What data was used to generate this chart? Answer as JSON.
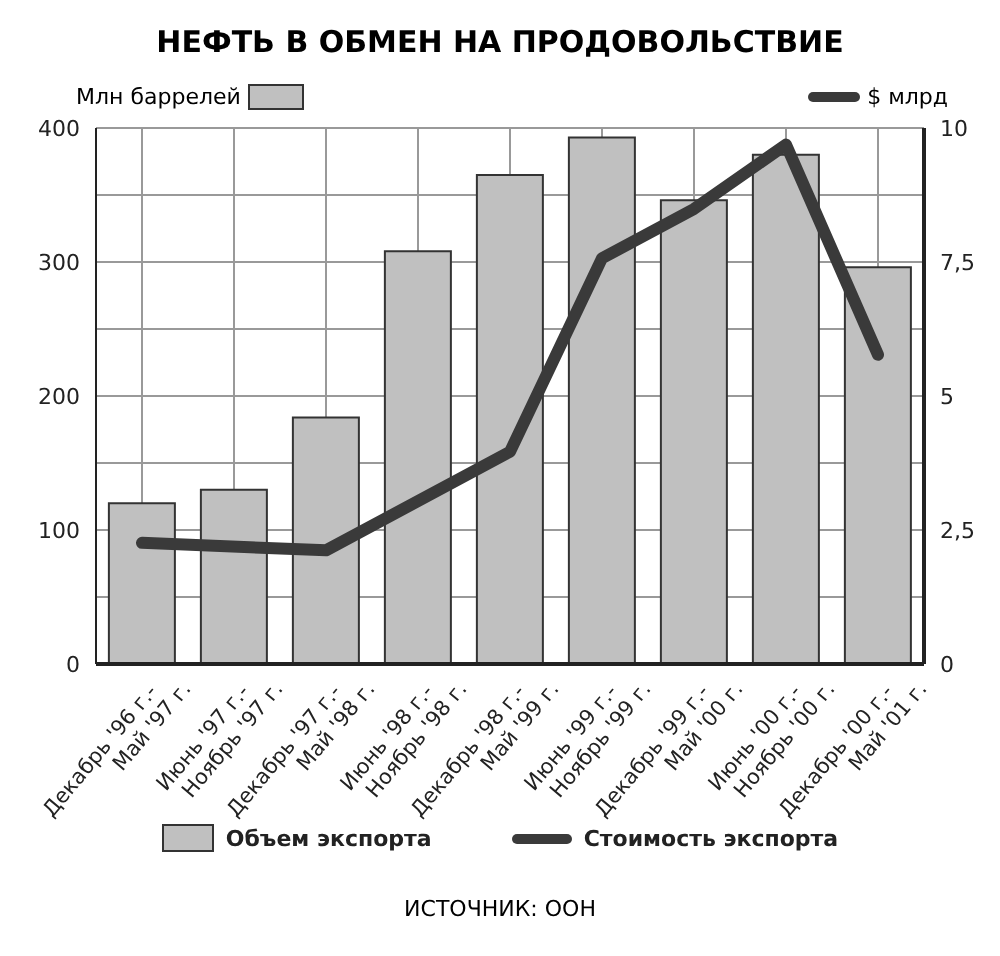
{
  "chart_data": {
    "type": "bar",
    "title": "НЕФТЬ В ОБМЕН НА ПРОДОВОЛЬСТВИЕ",
    "categories": [
      "Декабрь '96 г.-\nМай '97 г.",
      "Июнь '97 г.-\nНоябрь '97 г.",
      "Декабрь '97 г.-\nМай '98 г.",
      "Июнь '98 г.-\nНоябрь '98 г.",
      "Декабрь '98 г.-\nМай '99 г.",
      "Июнь '99 г.-\nНоябрь '99 г.",
      "Декабрь '99 г.-\nМай '00 г.",
      "Июнь '00 г.-\nНоябрь '00 г.",
      "Декабрь '00 г.-\nМай '01 г."
    ],
    "series": [
      {
        "name": "Объем экспорта",
        "color": "#c0c0c0",
        "values": [
          120,
          130,
          184,
          308,
          365,
          393,
          346,
          380,
          296
        ]
      },
      {
        "name": "Стоимость экспорта",
        "type": "line",
        "axis": "y2",
        "color": "#3a3a3a",
        "values": [
          2.26,
          null,
          2.12,
          null,
          3.96,
          7.57,
          8.49,
          9.69,
          5.77
        ]
      }
    ],
    "ylabel": "Млн баррелей",
    "y2label": "$ млрд",
    "ylim": [
      0,
      400
    ],
    "yticks": [
      0,
      {
        "value": 50,
        "label": null
      },
      100,
      {
        "value": 150,
        "label": null
      },
      200,
      {
        "value": 250,
        "label": null
      },
      300,
      {
        "value": 350,
        "label": null
      },
      400
    ],
    "y2lim": [
      0,
      10
    ],
    "y2ticks": [
      0,
      "2,5",
      5,
      "7,5",
      10
    ],
    "grid": true,
    "legend": "bottom",
    "line_style": "solid",
    "marker": "none",
    "annotations": [
      "ИСТОЧНИК: ООН"
    ]
  }
}
